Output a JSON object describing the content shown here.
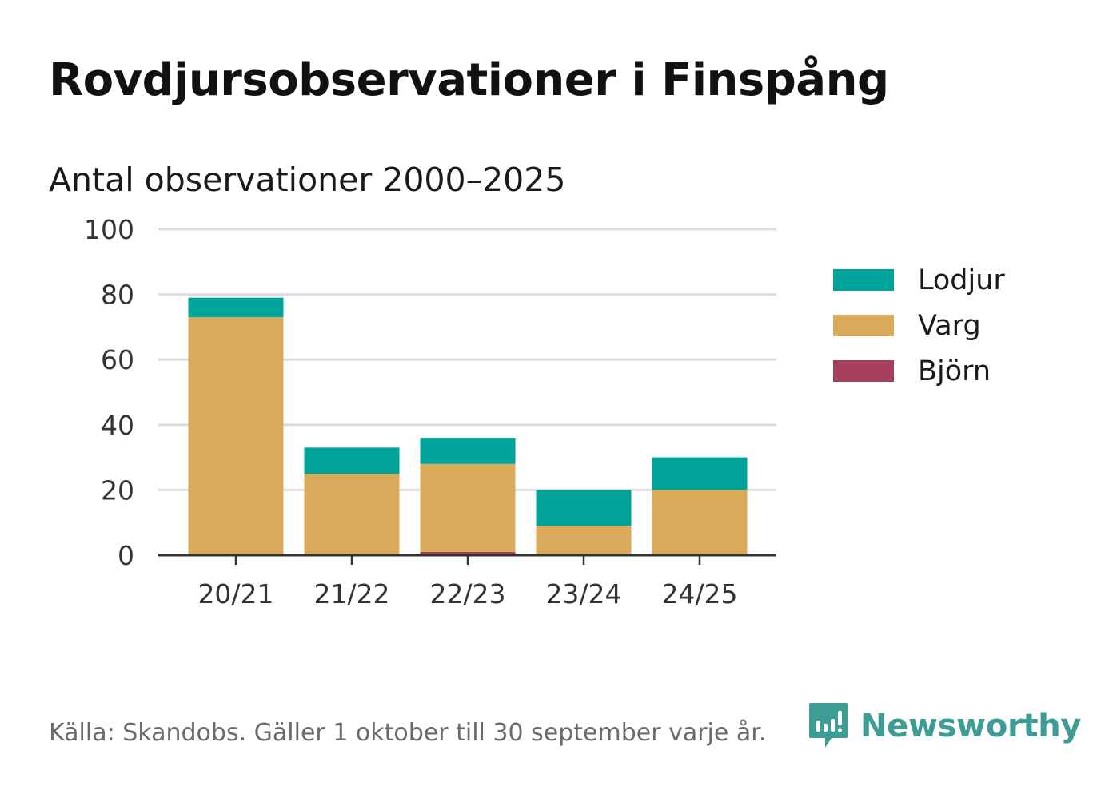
{
  "title": "Rovdjursobservationer i Finspång",
  "subtitle": "Antal observationer 2000–2025",
  "source": "Källa: Skandobs. Gäller 1 oktober till 30 september varje år.",
  "brand": "Newsworthy",
  "colors": {
    "lodjur": "#00a39a",
    "varg": "#d9aa5a",
    "bjorn": "#a63f5e",
    "grid": "#dddddd",
    "axis": "#333333",
    "brand": "#3d9c94"
  },
  "legend": [
    {
      "label": "Lodjur",
      "color": "#00a39a"
    },
    {
      "label": "Varg",
      "color": "#d9aa5a"
    },
    {
      "label": "Björn",
      "color": "#a63f5e"
    }
  ],
  "chart_data": {
    "type": "bar",
    "stacked": true,
    "title": "Rovdjursobservationer i Finspång",
    "subtitle": "Antal observationer 2000–2025",
    "xlabel": "",
    "ylabel": "",
    "ylim": [
      0,
      100
    ],
    "yticks": [
      "0",
      "20",
      "40",
      "60",
      "80",
      "100"
    ],
    "categories": [
      "20/21",
      "21/22",
      "22/23",
      "23/24",
      "24/25"
    ],
    "series": [
      {
        "name": "Björn",
        "color": "#a63f5e",
        "values": [
          0,
          0,
          1,
          0,
          0
        ]
      },
      {
        "name": "Varg",
        "color": "#d9aa5a",
        "values": [
          73,
          25,
          27,
          9,
          20
        ]
      },
      {
        "name": "Lodjur",
        "color": "#00a39a",
        "values": [
          6,
          8,
          8,
          11,
          10
        ]
      }
    ],
    "legend_position": "right",
    "grid": true
  }
}
